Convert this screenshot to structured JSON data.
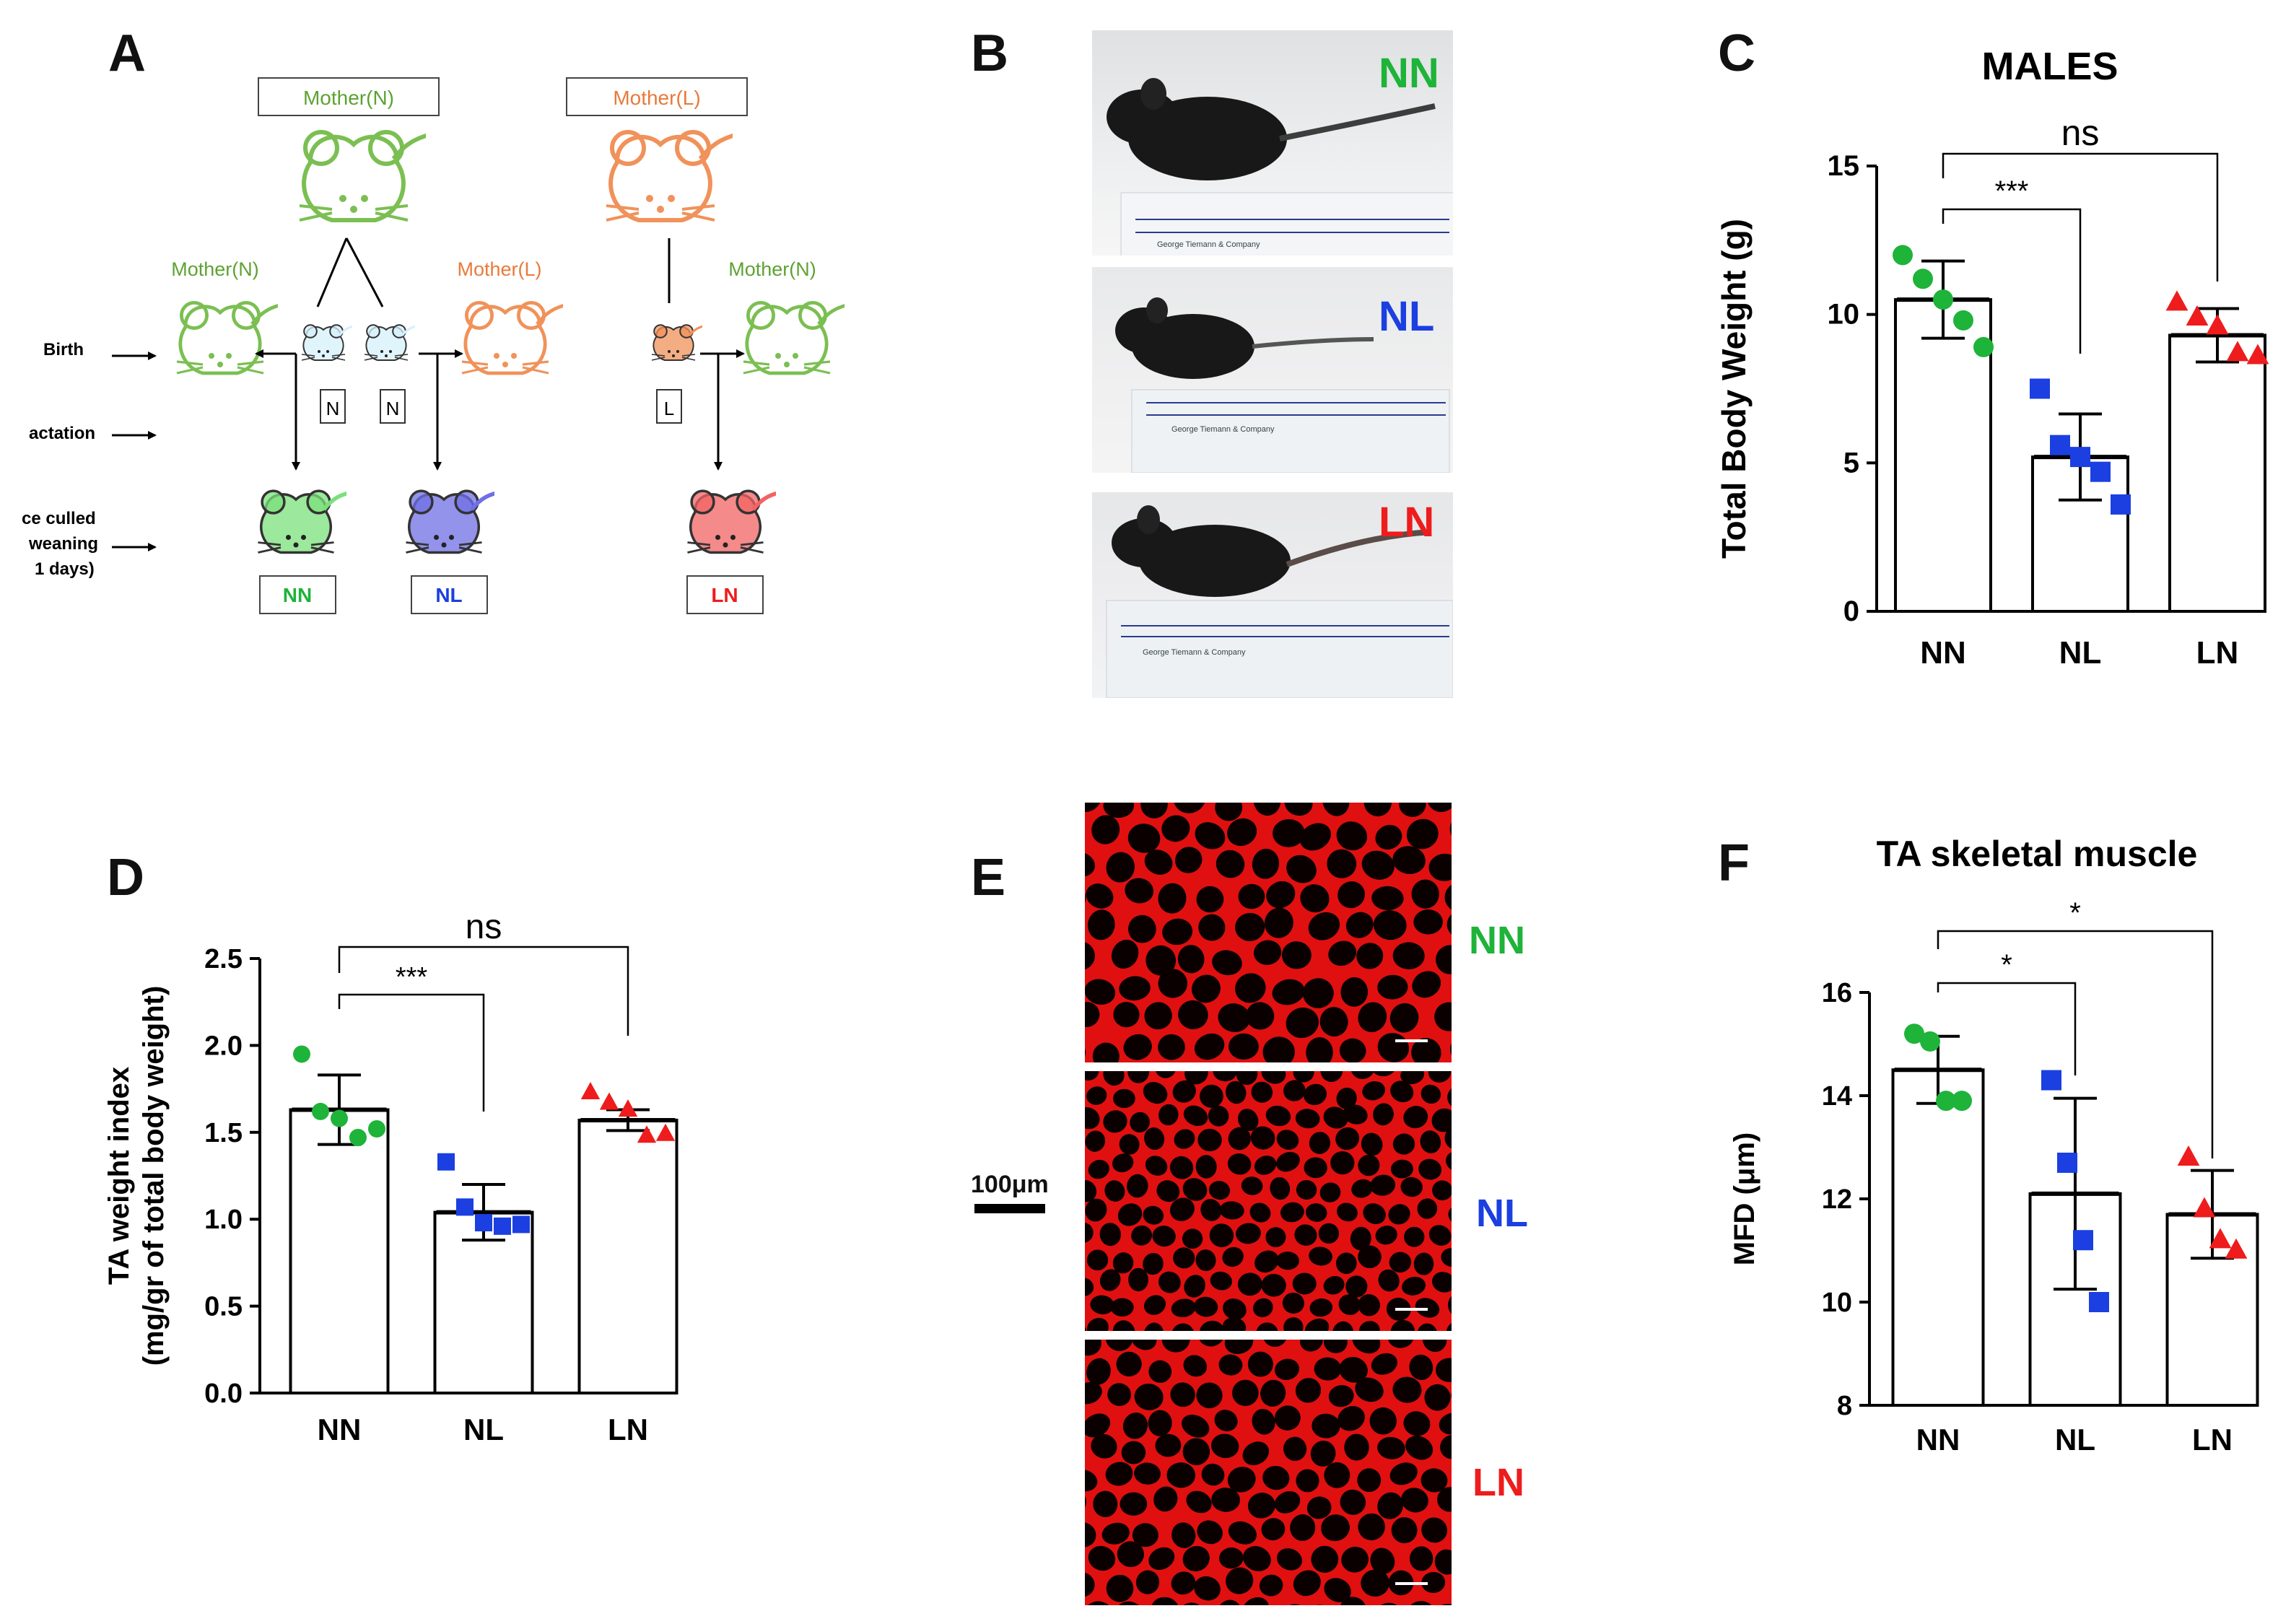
{
  "colors": {
    "NN": "#1eb339",
    "NL": "#1b3fe0",
    "LN": "#ee1c1c",
    "mother_N": "#5ea232",
    "mother_L": "#e87a3a",
    "muscle": "#e01010"
  },
  "panel_labels": [
    "A",
    "B",
    "C",
    "D",
    "E",
    "F"
  ],
  "panel_a": {
    "mother_n_box": "Mother(N)",
    "mother_l_box": "Mother(L)",
    "foster_left": "Mother(N)",
    "foster_mid": "Mother(L)",
    "foster_right": "Mother(N)",
    "stage_birth": "Birth",
    "stage_lactation": "actation",
    "stage_cull_1": "ce culled",
    "stage_cull_2": "weaning",
    "stage_cull_3": "1 days)",
    "pup_tags": [
      "N",
      "N",
      "L"
    ],
    "group_boxes": [
      "NN",
      "NL",
      "LN"
    ],
    "icons": [
      "mouse-icon",
      "arrow-icon"
    ]
  },
  "panel_b": {
    "labels": [
      "NN",
      "NL",
      "LN"
    ],
    "ruler_caption": "George Tiemann & Company"
  },
  "panel_e": {
    "labels": [
      "NN",
      "NL",
      "LN"
    ],
    "scale_bar": "100μm"
  },
  "chart_data": [
    {
      "type": "bar",
      "panel": "C",
      "title": "MALES",
      "ylabel": "Total Body Weight (g)",
      "categories": [
        "NN",
        "NL",
        "LN"
      ],
      "ylim": [
        0,
        15
      ],
      "yticks": [
        "0",
        "5",
        "10",
        "15"
      ],
      "means": [
        10.5,
        5.2,
        9.3
      ],
      "errors": [
        1.3,
        1.45,
        0.9
      ],
      "points": [
        [
          12.0,
          11.2,
          10.5,
          9.8,
          8.9
        ],
        [
          7.5,
          5.6,
          5.2,
          4.7,
          3.6
        ],
        [
          10.4,
          9.9,
          9.6,
          8.7,
          8.6
        ]
      ],
      "markers": [
        "circle",
        "square",
        "triangle"
      ],
      "significance": [
        {
          "from": "NN",
          "to": "NL",
          "label": "***"
        },
        {
          "from": "NN",
          "to": "LN",
          "label": "ns"
        }
      ]
    },
    {
      "type": "bar",
      "panel": "D",
      "title": "",
      "ylabel": "TA weight index",
      "ylabel2": "(mg/gr of total body weight)",
      "categories": [
        "NN",
        "NL",
        "LN"
      ],
      "ylim": [
        0,
        2.5
      ],
      "yticks": [
        "0.0",
        "0.5",
        "1.0",
        "1.5",
        "2.0",
        "2.5"
      ],
      "means": [
        1.63,
        1.04,
        1.57
      ],
      "errors": [
        0.2,
        0.16,
        0.06
      ],
      "points": [
        [
          1.95,
          1.62,
          1.58,
          1.47,
          1.52
        ],
        [
          1.33,
          1.07,
          0.98,
          0.96,
          0.97
        ],
        [
          1.73,
          1.67,
          1.63,
          1.48,
          1.49
        ]
      ],
      "markers": [
        "circle",
        "square",
        "triangle"
      ],
      "significance": [
        {
          "from": "NN",
          "to": "NL",
          "label": "***"
        },
        {
          "from": "NN",
          "to": "LN",
          "label": "ns"
        }
      ]
    },
    {
      "type": "bar",
      "panel": "F",
      "title": "TA skeletal muscle",
      "ylabel": "MFD (μm)",
      "categories": [
        "NN",
        "NL",
        "LN"
      ],
      "ylim": [
        8,
        16
      ],
      "yticks": [
        "8",
        "10",
        "12",
        "14",
        "16"
      ],
      "means": [
        14.5,
        12.1,
        11.7
      ],
      "errors": [
        0.65,
        1.85,
        0.85
      ],
      "points": [
        [
          15.2,
          15.05,
          13.9,
          13.9
        ],
        [
          14.3,
          12.7,
          11.2,
          10.0
        ],
        [
          12.8,
          11.8,
          11.2,
          11.0
        ]
      ],
      "markers": [
        "circle",
        "square",
        "triangle"
      ],
      "significance": [
        {
          "from": "NN",
          "to": "NL",
          "label": "*"
        },
        {
          "from": "NN",
          "to": "LN",
          "label": "*"
        }
      ]
    }
  ]
}
